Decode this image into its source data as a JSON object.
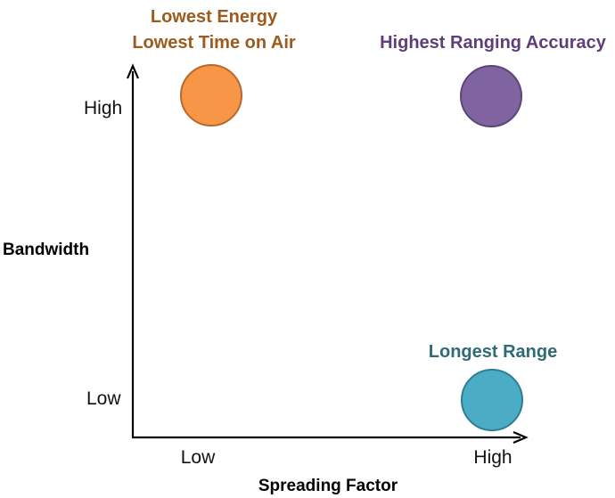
{
  "axes": {
    "x_title": "Spreading Factor",
    "y_title": "Bandwidth",
    "x_ticks": [
      "Low",
      "High"
    ],
    "y_ticks": [
      "High",
      "Low"
    ]
  },
  "annotations": {
    "top_left": {
      "lines": [
        "Lowest Energy",
        "Lowest Time on Air"
      ],
      "color": "#9c5a1e"
    },
    "top_right": {
      "lines": [
        "Highest Ranging Accuracy"
      ],
      "color": "#5f3d78"
    },
    "bottom_right": {
      "lines": [
        "Longest Range"
      ],
      "color": "#2f6b76"
    }
  },
  "circles": [
    {
      "quadrant": "top_left",
      "fill": "#f79646",
      "stroke": "#b8672f"
    },
    {
      "quadrant": "top_right",
      "fill": "#8064a2",
      "stroke": "#5c4678"
    },
    {
      "quadrant": "bottom_right",
      "fill": "#4bacc6",
      "stroke": "#2f7d91"
    }
  ]
}
